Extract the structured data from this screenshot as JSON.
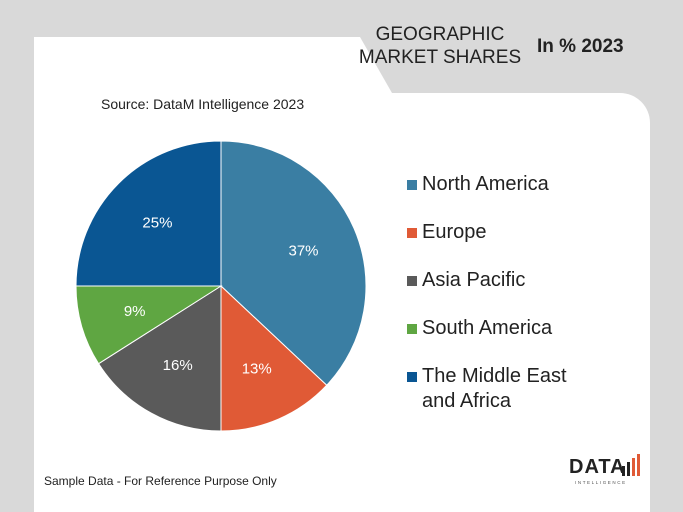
{
  "title": {
    "line1": "GEOGRAPHIC",
    "line2": "MARKET SHARES",
    "unit": "In % 2023"
  },
  "source": "Source: DataM Intelligence  2023",
  "footnote": "Sample Data - For Reference Purpose Only",
  "logo": {
    "text": "DATA",
    "sub": "INTELLIGENCE"
  },
  "chart_data": {
    "type": "pie",
    "title": "GEOGRAPHIC MARKET SHARES In % 2023",
    "categories": [
      "North America",
      "Europe",
      "Asia Pacific",
      "South America",
      "The Middle East and Africa"
    ],
    "values": [
      37,
      13,
      16,
      9,
      25
    ],
    "data_labels": [
      "37%",
      "13%",
      "16%",
      "9%",
      "25%"
    ],
    "colors": [
      "#3a7ea3",
      "#e05a36",
      "#5a5a5a",
      "#5fa642",
      "#0a5693"
    ],
    "legend": {
      "position": "right",
      "entries": [
        "North America",
        "Europe",
        "Asia Pacific",
        "South America",
        "The Middle East and Africa"
      ]
    }
  }
}
